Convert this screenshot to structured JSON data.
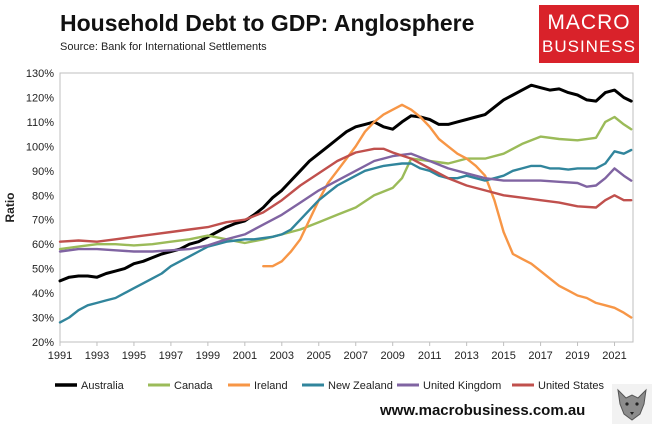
{
  "header": {
    "title": "Household Debt to GDP: Anglosphere",
    "source": "Source: Bank for International Settlements"
  },
  "logo": {
    "line1": "MACRO",
    "line2": "BUSINESS",
    "color": "#d9222a"
  },
  "footer": {
    "url": "www.macrobusiness.com.au",
    "emblem": "wolf-icon"
  },
  "chart_data": {
    "type": "line",
    "ylabel": "Ratio",
    "xlabel": "",
    "xlim": [
      1991,
      2022.0
    ],
    "ylim": [
      20,
      130
    ],
    "yticks": [
      "20%",
      "30%",
      "40%",
      "50%",
      "60%",
      "70%",
      "80%",
      "90%",
      "100%",
      "110%",
      "120%",
      "130%"
    ],
    "xticks": [
      "1991",
      "1993",
      "1995",
      "1997",
      "1999",
      "2001",
      "2003",
      "2005",
      "2007",
      "2009",
      "2011",
      "2013",
      "2015",
      "2017",
      "2019",
      "2021"
    ],
    "grid": "none",
    "legend": "bottom",
    "series": [
      {
        "name": "Australia",
        "color": "#000000",
        "points": [
          [
            1991,
            45
          ],
          [
            1991.5,
            46.5
          ],
          [
            1992,
            47
          ],
          [
            1992.5,
            47
          ],
          [
            1993,
            46.5
          ],
          [
            1993.5,
            48
          ],
          [
            1994,
            49
          ],
          [
            1994.5,
            50
          ],
          [
            1995,
            52
          ],
          [
            1995.5,
            53
          ],
          [
            1996,
            54.5
          ],
          [
            1996.5,
            56
          ],
          [
            1997,
            57
          ],
          [
            1997.5,
            58
          ],
          [
            1998,
            60
          ],
          [
            1998.5,
            61
          ],
          [
            1999,
            63
          ],
          [
            1999.5,
            65
          ],
          [
            2000,
            67
          ],
          [
            2000.5,
            68.5
          ],
          [
            2001,
            69.5
          ],
          [
            2001.5,
            72
          ],
          [
            2002,
            75
          ],
          [
            2002.5,
            79
          ],
          [
            2003,
            82
          ],
          [
            2003.5,
            86
          ],
          [
            2004,
            90
          ],
          [
            2004.5,
            94
          ],
          [
            2005,
            97
          ],
          [
            2005.5,
            100
          ],
          [
            2006,
            103
          ],
          [
            2006.5,
            106
          ],
          [
            2007,
            108
          ],
          [
            2007.5,
            109
          ],
          [
            2008,
            110
          ],
          [
            2008.5,
            108
          ],
          [
            2009,
            107
          ],
          [
            2009.5,
            110
          ],
          [
            2010,
            112.5
          ],
          [
            2010.5,
            112
          ],
          [
            2011,
            111
          ],
          [
            2011.5,
            109
          ],
          [
            2012,
            109
          ],
          [
            2012.5,
            110
          ],
          [
            2013,
            111
          ],
          [
            2013.5,
            112
          ],
          [
            2014,
            113
          ],
          [
            2014.5,
            116
          ],
          [
            2015,
            119
          ],
          [
            2015.5,
            121
          ],
          [
            2016,
            123
          ],
          [
            2016.5,
            125
          ],
          [
            2017,
            124
          ],
          [
            2017.5,
            123
          ],
          [
            2018,
            123.5
          ],
          [
            2018.5,
            122
          ],
          [
            2019,
            121
          ],
          [
            2019.5,
            119
          ],
          [
            2020,
            118.5
          ],
          [
            2020.5,
            122
          ],
          [
            2021,
            123
          ],
          [
            2021.5,
            120
          ],
          [
            2021.9,
            118.5
          ]
        ]
      },
      {
        "name": "Canada",
        "color": "#9bbb59",
        "points": [
          [
            1991,
            58
          ],
          [
            1992,
            59
          ],
          [
            1993,
            60
          ],
          [
            1994,
            60
          ],
          [
            1995,
            59.5
          ],
          [
            1996,
            60
          ],
          [
            1997,
            61
          ],
          [
            1998,
            62
          ],
          [
            1999,
            63.5
          ],
          [
            2000,
            62
          ],
          [
            2001,
            60.5
          ],
          [
            2002,
            62
          ],
          [
            2003,
            64
          ],
          [
            2004,
            66
          ],
          [
            2005,
            69
          ],
          [
            2006,
            72
          ],
          [
            2007,
            75
          ],
          [
            2008,
            80
          ],
          [
            2009,
            83
          ],
          [
            2009.5,
            87
          ],
          [
            2010,
            95
          ],
          [
            2011,
            94
          ],
          [
            2012,
            93
          ],
          [
            2013,
            95
          ],
          [
            2014,
            95
          ],
          [
            2015,
            97
          ],
          [
            2016,
            101
          ],
          [
            2017,
            104
          ],
          [
            2018,
            103
          ],
          [
            2019,
            102.5
          ],
          [
            2020,
            103.5
          ],
          [
            2020.5,
            110
          ],
          [
            2021,
            112
          ],
          [
            2021.5,
            109
          ],
          [
            2021.9,
            107
          ]
        ]
      },
      {
        "name": "Ireland",
        "color": "#f79646",
        "points": [
          [
            2002,
            51
          ],
          [
            2002.5,
            51
          ],
          [
            2003,
            53
          ],
          [
            2003.5,
            57
          ],
          [
            2004,
            62
          ],
          [
            2004.5,
            70
          ],
          [
            2005,
            78
          ],
          [
            2005.5,
            85
          ],
          [
            2006,
            90
          ],
          [
            2006.5,
            95
          ],
          [
            2007,
            100
          ],
          [
            2007.5,
            106
          ],
          [
            2008,
            110
          ],
          [
            2008.5,
            113
          ],
          [
            2009,
            115
          ],
          [
            2009.5,
            117
          ],
          [
            2010,
            115
          ],
          [
            2010.5,
            112
          ],
          [
            2011,
            108
          ],
          [
            2011.5,
            103
          ],
          [
            2012,
            100
          ],
          [
            2012.5,
            97
          ],
          [
            2013,
            95
          ],
          [
            2013.5,
            92
          ],
          [
            2014,
            88
          ],
          [
            2014.5,
            78
          ],
          [
            2015,
            65
          ],
          [
            2015.5,
            56
          ],
          [
            2016,
            54
          ],
          [
            2016.5,
            52
          ],
          [
            2017,
            49
          ],
          [
            2017.5,
            46
          ],
          [
            2018,
            43
          ],
          [
            2018.5,
            41
          ],
          [
            2019,
            39
          ],
          [
            2019.5,
            38
          ],
          [
            2020,
            36
          ],
          [
            2020.5,
            35
          ],
          [
            2021,
            34
          ],
          [
            2021.5,
            32
          ],
          [
            2021.9,
            30
          ]
        ]
      },
      {
        "name": "New Zealand",
        "color": "#31859c",
        "points": [
          [
            1991,
            28
          ],
          [
            1991.5,
            30
          ],
          [
            1992,
            33
          ],
          [
            1992.5,
            35
          ],
          [
            1993,
            36
          ],
          [
            1993.5,
            37
          ],
          [
            1994,
            38
          ],
          [
            1994.5,
            40
          ],
          [
            1995,
            42
          ],
          [
            1995.5,
            44
          ],
          [
            1996,
            46
          ],
          [
            1996.5,
            48
          ],
          [
            1997,
            51
          ],
          [
            1997.5,
            53
          ],
          [
            1998,
            55
          ],
          [
            1998.5,
            57
          ],
          [
            1999,
            59
          ],
          [
            1999.5,
            60
          ],
          [
            2000,
            61
          ],
          [
            2000.5,
            61.5
          ],
          [
            2001,
            62
          ],
          [
            2001.5,
            62
          ],
          [
            2002,
            62.5
          ],
          [
            2002.5,
            63
          ],
          [
            2003,
            64
          ],
          [
            2003.5,
            66
          ],
          [
            2004,
            70
          ],
          [
            2004.5,
            74
          ],
          [
            2005,
            78
          ],
          [
            2005.5,
            81
          ],
          [
            2006,
            84
          ],
          [
            2006.5,
            86
          ],
          [
            2007,
            88
          ],
          [
            2007.5,
            90
          ],
          [
            2008,
            91
          ],
          [
            2008.5,
            92
          ],
          [
            2009,
            92.5
          ],
          [
            2009.5,
            93
          ],
          [
            2010,
            93
          ],
          [
            2010.5,
            91
          ],
          [
            2011,
            90
          ],
          [
            2011.5,
            88
          ],
          [
            2012,
            87
          ],
          [
            2012.5,
            87
          ],
          [
            2013,
            88
          ],
          [
            2013.5,
            87
          ],
          [
            2014,
            86
          ],
          [
            2014.5,
            87
          ],
          [
            2015,
            88
          ],
          [
            2015.5,
            90
          ],
          [
            2016,
            91
          ],
          [
            2016.5,
            92
          ],
          [
            2017,
            92
          ],
          [
            2017.5,
            91
          ],
          [
            2018,
            91
          ],
          [
            2018.5,
            90.5
          ],
          [
            2019,
            91
          ],
          [
            2019.5,
            91
          ],
          [
            2020,
            91
          ],
          [
            2020.5,
            93
          ],
          [
            2021,
            98
          ],
          [
            2021.5,
            97
          ],
          [
            2021.9,
            98.5
          ]
        ]
      },
      {
        "name": "United Kingdom",
        "color": "#8064a2",
        "points": [
          [
            1991,
            57
          ],
          [
            1992,
            58
          ],
          [
            1993,
            58
          ],
          [
            1994,
            57.5
          ],
          [
            1995,
            57
          ],
          [
            1996,
            57
          ],
          [
            1997,
            57.5
          ],
          [
            1998,
            58
          ],
          [
            1999,
            59.5
          ],
          [
            2000,
            62
          ],
          [
            2001,
            64
          ],
          [
            2002,
            68
          ],
          [
            2003,
            72
          ],
          [
            2004,
            77
          ],
          [
            2005,
            82
          ],
          [
            2006,
            86
          ],
          [
            2007,
            90
          ],
          [
            2008,
            94
          ],
          [
            2009,
            96
          ],
          [
            2010,
            97
          ],
          [
            2011,
            94
          ],
          [
            2012,
            91
          ],
          [
            2013,
            89
          ],
          [
            2014,
            87
          ],
          [
            2015,
            86
          ],
          [
            2016,
            86
          ],
          [
            2017,
            86
          ],
          [
            2018,
            85.5
          ],
          [
            2019,
            85
          ],
          [
            2019.5,
            83.5
          ],
          [
            2020,
            84
          ],
          [
            2020.5,
            87
          ],
          [
            2021,
            91
          ],
          [
            2021.5,
            88
          ],
          [
            2021.9,
            86
          ]
        ]
      },
      {
        "name": "United States",
        "color": "#c0504d",
        "points": [
          [
            1991,
            61
          ],
          [
            1992,
            61.5
          ],
          [
            1993,
            61
          ],
          [
            1994,
            62
          ],
          [
            1995,
            63
          ],
          [
            1996,
            64
          ],
          [
            1997,
            65
          ],
          [
            1998,
            66
          ],
          [
            1999,
            67
          ],
          [
            2000,
            69
          ],
          [
            2001,
            70
          ],
          [
            2002,
            73
          ],
          [
            2003,
            78
          ],
          [
            2004,
            84
          ],
          [
            2005,
            89
          ],
          [
            2006,
            94
          ],
          [
            2007,
            97.5
          ],
          [
            2008,
            99
          ],
          [
            2008.5,
            99
          ],
          [
            2009,
            97.5
          ],
          [
            2010,
            95
          ],
          [
            2011,
            91
          ],
          [
            2012,
            87
          ],
          [
            2013,
            84
          ],
          [
            2014,
            82
          ],
          [
            2015,
            80
          ],
          [
            2016,
            79
          ],
          [
            2017,
            78
          ],
          [
            2018,
            77
          ],
          [
            2019,
            75.5
          ],
          [
            2020,
            75
          ],
          [
            2020.5,
            78
          ],
          [
            2021,
            80
          ],
          [
            2021.5,
            78
          ],
          [
            2021.9,
            78
          ]
        ]
      }
    ]
  }
}
